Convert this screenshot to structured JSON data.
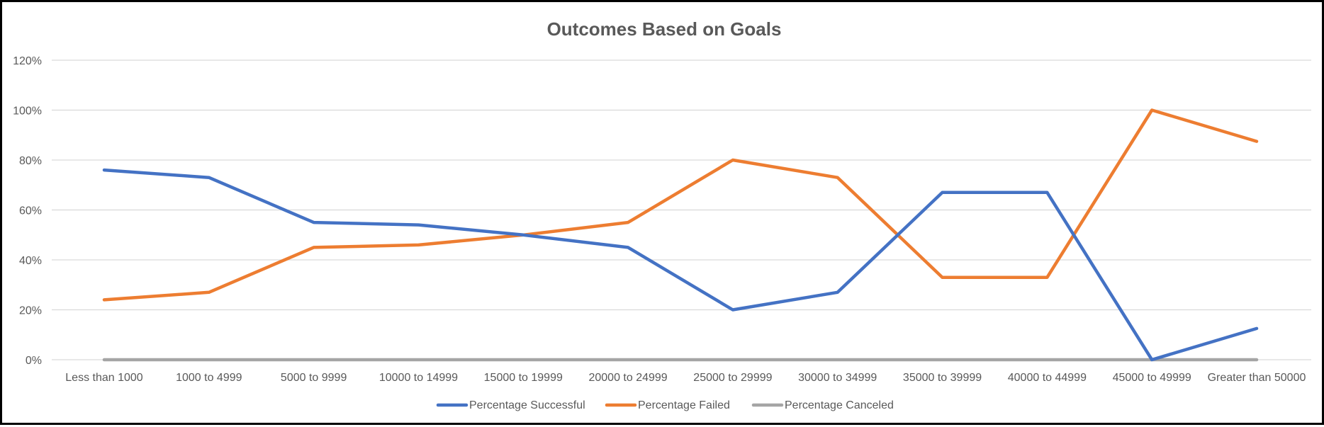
{
  "chart_data": {
    "type": "line",
    "title": "Outcomes Based on Goals",
    "xlabel": "",
    "ylabel": "",
    "categories": [
      "Less than 1000",
      "1000 to 4999",
      "5000 to 9999",
      "10000 to 14999",
      "15000 to 19999",
      "20000 to 24999",
      "25000 to 29999",
      "30000 to 34999",
      "35000 to 39999",
      "40000 to 44999",
      "45000 to 49999",
      "Greater than 50000"
    ],
    "ylim": [
      0,
      1.2
    ],
    "yticks": [
      0,
      0.2,
      0.4,
      0.6,
      0.8,
      1.0,
      1.2
    ],
    "ytick_labels": [
      "0%",
      "20%",
      "40%",
      "60%",
      "80%",
      "100%",
      "120%"
    ],
    "grid": true,
    "legend_position": "bottom",
    "series": [
      {
        "name": "Percentage Successful",
        "color": "#4472C4",
        "values": [
          0.76,
          0.73,
          0.55,
          0.54,
          0.5,
          0.45,
          0.2,
          0.27,
          0.67,
          0.67,
          0.0,
          0.125
        ]
      },
      {
        "name": "Percentage Failed",
        "color": "#ED7D31",
        "values": [
          0.24,
          0.27,
          0.45,
          0.46,
          0.5,
          0.55,
          0.8,
          0.73,
          0.33,
          0.33,
          1.0,
          0.875
        ]
      },
      {
        "name": "Percentage Canceled",
        "color": "#A5A5A5",
        "values": [
          0,
          0,
          0,
          0,
          0,
          0,
          0,
          0,
          0,
          0,
          0,
          0
        ]
      }
    ]
  }
}
